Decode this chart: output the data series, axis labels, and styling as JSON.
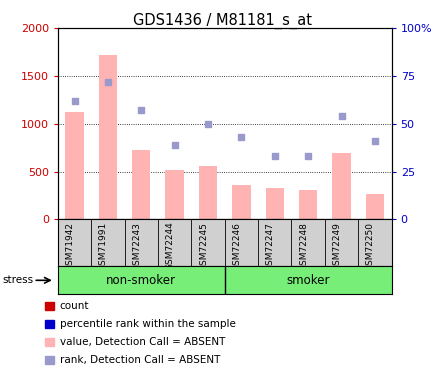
{
  "title": "GDS1436 / M81181_s_at",
  "samples": [
    "GSM71942",
    "GSM71991",
    "GSM72243",
    "GSM72244",
    "GSM72245",
    "GSM72246",
    "GSM72247",
    "GSM72248",
    "GSM72249",
    "GSM72250"
  ],
  "bar_values": [
    1120,
    1720,
    730,
    520,
    560,
    355,
    325,
    305,
    690,
    270
  ],
  "rank_dots": [
    62,
    72,
    57,
    39,
    50,
    43,
    33,
    33,
    54,
    41
  ],
  "groups": [
    {
      "label": "non-smoker",
      "start": 0,
      "end": 5
    },
    {
      "label": "smoker",
      "start": 5,
      "end": 10
    }
  ],
  "stress_label": "stress",
  "ylim_left": [
    0,
    2000
  ],
  "ylim_right": [
    0,
    100
  ],
  "yticks_left": [
    0,
    500,
    1000,
    1500,
    2000
  ],
  "ytick_labels_left": [
    "0",
    "500",
    "1000",
    "1500",
    "2000"
  ],
  "yticks_right": [
    0,
    25,
    50,
    75,
    100
  ],
  "ytick_labels_right": [
    "0",
    "25",
    "50",
    "75",
    "100%"
  ],
  "bar_color": "#ffb3b3",
  "dot_color": "#9999cc",
  "left_axis_color": "#cc0000",
  "right_axis_color": "#0000cc",
  "grid_color": "black",
  "plot_bg": "#ffffff",
  "label_area_color": "#d0d0d0",
  "group_bg_color": "#77ee77",
  "legend_items": [
    {
      "label": "count",
      "color": "#cc0000"
    },
    {
      "label": "percentile rank within the sample",
      "color": "#0000cc"
    },
    {
      "label": "value, Detection Call = ABSENT",
      "color": "#ffb3b3"
    },
    {
      "label": "rank, Detection Call = ABSENT",
      "color": "#9999cc"
    }
  ],
  "fig_width": 4.45,
  "fig_height": 3.75,
  "fig_dpi": 100
}
